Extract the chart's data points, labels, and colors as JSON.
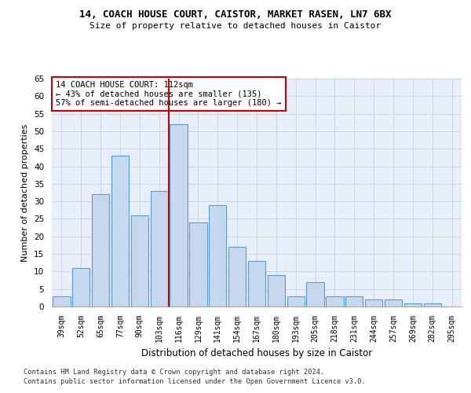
{
  "title1": "14, COACH HOUSE COURT, CAISTOR, MARKET RASEN, LN7 6BX",
  "title2": "Size of property relative to detached houses in Caistor",
  "xlabel": "Distribution of detached houses by size in Caistor",
  "ylabel": "Number of detached properties",
  "categories": [
    "39sqm",
    "52sqm",
    "65sqm",
    "77sqm",
    "90sqm",
    "103sqm",
    "116sqm",
    "129sqm",
    "141sqm",
    "154sqm",
    "167sqm",
    "180sqm",
    "193sqm",
    "205sqm",
    "218sqm",
    "231sqm",
    "244sqm",
    "257sqm",
    "269sqm",
    "282sqm",
    "295sqm"
  ],
  "values": [
    3,
    11,
    32,
    43,
    26,
    33,
    52,
    24,
    29,
    17,
    13,
    9,
    3,
    7,
    3,
    3,
    2,
    2,
    1,
    1,
    0
  ],
  "bar_color": "#c5d8ed",
  "bar_edge_color": "#5b9bd5",
  "vline_x": 5.5,
  "vline_color": "#cc0000",
  "annotation_line1": "14 COACH HOUSE COURT: 112sqm",
  "annotation_line2": "← 43% of detached houses are smaller (135)",
  "annotation_line3": "57% of semi-detached houses are larger (180) →",
  "annotation_box_color": "#cc0000",
  "ylim": [
    0,
    65
  ],
  "yticks": [
    0,
    5,
    10,
    15,
    20,
    25,
    30,
    35,
    40,
    45,
    50,
    55,
    60,
    65
  ],
  "grid_color": "#c8d4e8",
  "bg_color": "#e8eef7",
  "footnote1": "Contains HM Land Registry data © Crown copyright and database right 2024.",
  "footnote2": "Contains public sector information licensed under the Open Government Licence v3.0."
}
